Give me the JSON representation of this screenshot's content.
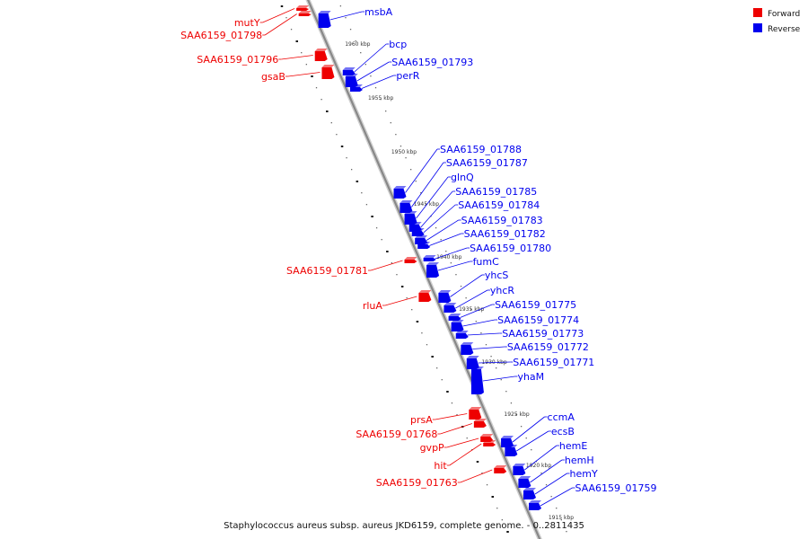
{
  "caption": "Staphylococcus aureus subsp. aureus JKD6159, complete genome. - 0..2811435",
  "legend": [
    {
      "label": "Forward",
      "color": "#ee0000"
    },
    {
      "label": "Reverse",
      "color": "#0000ee"
    }
  ],
  "colors": {
    "forward": "#ee0000",
    "reverse": "#0000ee",
    "backbone": "#888888"
  },
  "kbp_markers": [
    "1960 kbp",
    "1955 kbp",
    "1950 kbp",
    "1945 kbp",
    "1940 kbp",
    "1935 kbp",
    "1930 kbp",
    "1925 kbp",
    "1920 kbp",
    "1915 kbp"
  ],
  "genes": [
    {
      "name": "msbA",
      "strand": "reverse"
    },
    {
      "name": "mutY",
      "strand": "forward"
    },
    {
      "name": "SAA6159_01798",
      "strand": "forward"
    },
    {
      "name": "bcp",
      "strand": "reverse"
    },
    {
      "name": "SAA6159_01796",
      "strand": "forward"
    },
    {
      "name": "SAA6159_01793",
      "strand": "reverse"
    },
    {
      "name": "gsaB",
      "strand": "forward"
    },
    {
      "name": "perR",
      "strand": "reverse"
    },
    {
      "name": "SAA6159_01788",
      "strand": "reverse"
    },
    {
      "name": "SAA6159_01787",
      "strand": "reverse"
    },
    {
      "name": "glnQ",
      "strand": "reverse"
    },
    {
      "name": "SAA6159_01785",
      "strand": "reverse"
    },
    {
      "name": "SAA6159_01784",
      "strand": "reverse"
    },
    {
      "name": "SAA6159_01783",
      "strand": "reverse"
    },
    {
      "name": "SAA6159_01782",
      "strand": "reverse"
    },
    {
      "name": "SAA6159_01780",
      "strand": "reverse"
    },
    {
      "name": "fumC",
      "strand": "reverse"
    },
    {
      "name": "SAA6159_01781",
      "strand": "forward"
    },
    {
      "name": "yhcS",
      "strand": "reverse"
    },
    {
      "name": "yhcR",
      "strand": "reverse"
    },
    {
      "name": "rluA",
      "strand": "forward"
    },
    {
      "name": "SAA6159_01775",
      "strand": "reverse"
    },
    {
      "name": "SAA6159_01774",
      "strand": "reverse"
    },
    {
      "name": "SAA6159_01773",
      "strand": "reverse"
    },
    {
      "name": "SAA6159_01772",
      "strand": "reverse"
    },
    {
      "name": "SAA6159_01771",
      "strand": "reverse"
    },
    {
      "name": "yhaM",
      "strand": "reverse"
    },
    {
      "name": "ccmA",
      "strand": "reverse"
    },
    {
      "name": "prsA",
      "strand": "forward"
    },
    {
      "name": "ecsB",
      "strand": "reverse"
    },
    {
      "name": "SAA6159_01768",
      "strand": "forward"
    },
    {
      "name": "hemE",
      "strand": "reverse"
    },
    {
      "name": "gvpP",
      "strand": "forward"
    },
    {
      "name": "hemH",
      "strand": "reverse"
    },
    {
      "name": "hit",
      "strand": "forward"
    },
    {
      "name": "hemY",
      "strand": "reverse"
    },
    {
      "name": "SAA6159_01763",
      "strand": "forward"
    },
    {
      "name": "SAA6159_01759",
      "strand": "reverse"
    }
  ]
}
